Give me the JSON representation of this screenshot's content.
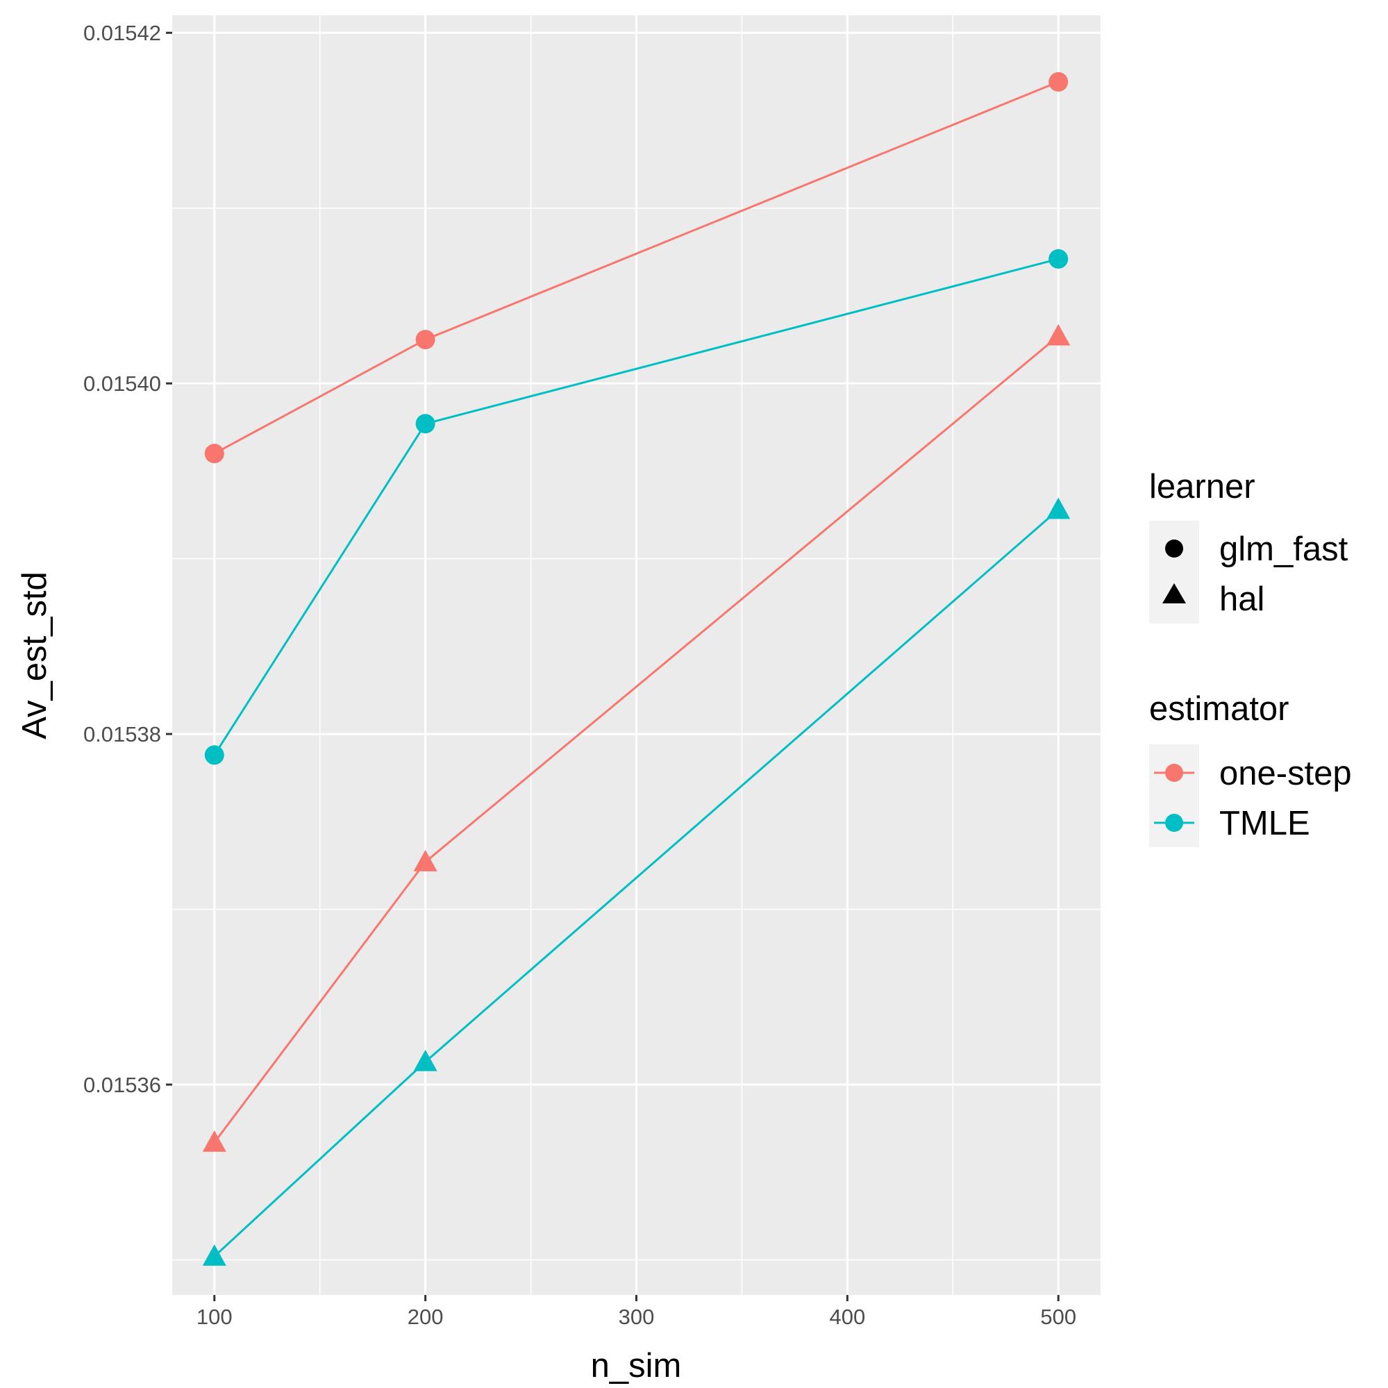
{
  "chart_data": {
    "type": "line",
    "xlabel": "n_sim",
    "ylabel": "Av_est_std",
    "x_ticks": [
      "100",
      "200",
      "300",
      "400",
      "500"
    ],
    "y_ticks": [
      "0.01536",
      "0.01538",
      "0.01540",
      "0.01542"
    ],
    "xlim": [
      80,
      520
    ],
    "ylim": [
      0.015348,
      0.015421
    ],
    "grid": true,
    "background": "#ebebeb",
    "legend_position": "right",
    "legends": {
      "learner": {
        "title": "learner",
        "entries": [
          {
            "label": "glm_fast",
            "shape": "circle"
          },
          {
            "label": "hal",
            "shape": "triangle"
          }
        ]
      },
      "estimator": {
        "title": "estimator",
        "entries": [
          {
            "label": "one-step",
            "color": "#F8766D"
          },
          {
            "label": "TMLE",
            "color": "#00BFC4"
          }
        ]
      }
    },
    "series": [
      {
        "estimator": "one-step",
        "learner": "glm_fast",
        "color": "#F8766D",
        "shape": "circle",
        "points": [
          [
            100,
            0.015396
          ],
          [
            200,
            0.0154025
          ],
          [
            500,
            0.0154172
          ]
        ]
      },
      {
        "estimator": "TMLE",
        "learner": "glm_fast",
        "color": "#00BFC4",
        "shape": "circle",
        "points": [
          [
            100,
            0.0153788
          ],
          [
            200,
            0.0153977
          ],
          [
            500,
            0.0154071
          ]
        ]
      },
      {
        "estimator": "one-step",
        "learner": "hal",
        "color": "#F8766D",
        "shape": "triangle",
        "points": [
          [
            100,
            0.0153567
          ],
          [
            200,
            0.0153727
          ],
          [
            500,
            0.0154027
          ]
        ]
      },
      {
        "estimator": "TMLE",
        "learner": "hal",
        "color": "#00BFC4",
        "shape": "triangle",
        "points": [
          [
            100,
            0.0153502
          ],
          [
            200,
            0.0153613
          ],
          [
            500,
            0.0153928
          ]
        ]
      }
    ]
  }
}
